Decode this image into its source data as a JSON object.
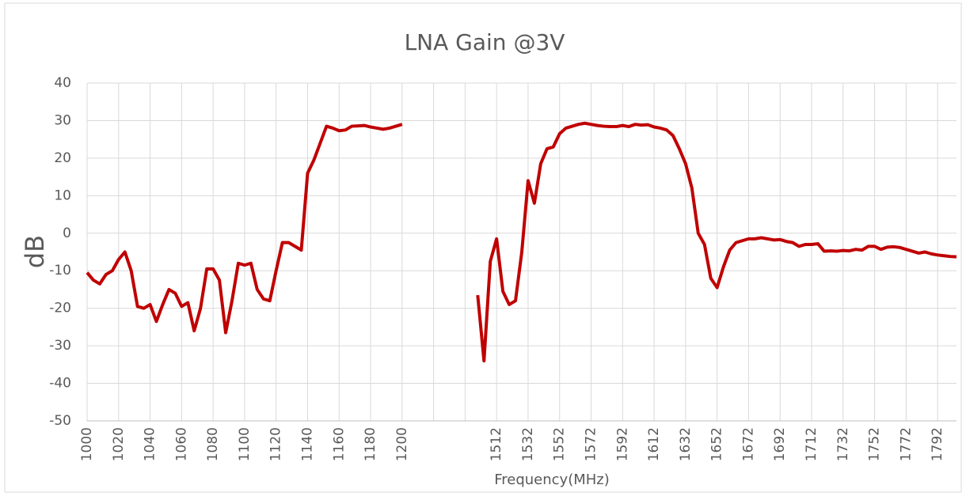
{
  "chart_data": {
    "type": "line",
    "title": "LNA Gain @3V",
    "x_label": "Frequency(MHz)",
    "y_label": "dB",
    "categories": [
      1000,
      null,
      null,
      null,
      null,
      1020,
      null,
      null,
      null,
      null,
      1040,
      null,
      null,
      null,
      null,
      1060,
      null,
      null,
      null,
      null,
      1080,
      null,
      null,
      null,
      null,
      1100,
      null,
      null,
      null,
      null,
      1120,
      null,
      null,
      null,
      null,
      1140,
      null,
      null,
      null,
      null,
      1160,
      null,
      null,
      null,
      null,
      1180,
      null,
      null,
      null,
      null,
      1200,
      null,
      null,
      null,
      null,
      null,
      null,
      null,
      null,
      null,
      null,
      null,
      null,
      null,
      null,
      1512,
      null,
      null,
      null,
      null,
      1532,
      null,
      null,
      null,
      null,
      1552,
      null,
      null,
      null,
      null,
      1572,
      null,
      null,
      null,
      null,
      1592,
      null,
      null,
      null,
      null,
      1612,
      null,
      null,
      null,
      null,
      1632,
      null,
      null,
      null,
      null,
      1652,
      null,
      null,
      null,
      null,
      1672,
      null,
      null,
      null,
      null,
      1692,
      null,
      null,
      null,
      null,
      1712,
      null,
      null,
      null,
      null,
      1732,
      null,
      null,
      null,
      null,
      1752,
      null,
      null,
      null,
      null,
      1772,
      null,
      null,
      null,
      null,
      1792,
      null,
      null,
      null
    ],
    "values": [
      -10.5,
      -12.5,
      -13.5,
      -11,
      -10,
      -7,
      -5,
      -10,
      -19.5,
      -20,
      -19,
      -23.5,
      -19,
      -15,
      -16,
      -19.5,
      -18.5,
      -26,
      -20,
      -9.5,
      -9.5,
      -12.5,
      -26.5,
      -18,
      -8,
      -8.5,
      -8,
      -15,
      -17.5,
      -18,
      -10,
      -2.5,
      -2.5,
      -3.5,
      -4.5,
      16,
      19.5,
      24,
      28.5,
      28,
      27.3,
      27.5,
      28.5,
      28.6,
      28.7,
      28.3,
      28,
      27.7,
      28,
      28.5,
      29,
      null,
      null,
      null,
      null,
      null,
      null,
      null,
      null,
      null,
      null,
      null,
      -16.5,
      -34,
      -7.5,
      -1.5,
      -15.5,
      -19,
      -18,
      -5,
      14,
      8,
      18.5,
      22.5,
      23,
      26.5,
      28,
      28.5,
      29,
      29.3,
      29,
      28.7,
      28.5,
      28.4,
      28.4,
      28.7,
      28.4,
      29,
      28.8,
      28.9,
      28.3,
      28,
      27.5,
      26,
      22.5,
      18.5,
      12,
      0,
      -3,
      -12,
      -14.5,
      -9,
      -4.5,
      -2.5,
      -2,
      -1.5,
      -1.5,
      -1.2,
      -1.5,
      -1.8,
      -1.7,
      -2.2,
      -2.5,
      -3.5,
      -3,
      -3,
      -2.8,
      -4.8,
      -4.7,
      -4.8,
      -4.6,
      -4.7,
      -4.3,
      -4.5,
      -3.5,
      -3.5,
      -4.3,
      -3.7,
      -3.6,
      -3.8,
      -4.3,
      -4.8,
      -5.3,
      -5,
      -5.5,
      -5.8,
      -6,
      -6.2,
      -6.3
    ],
    "color": "#c00000",
    "ylim": [
      -50,
      40
    ],
    "yticks": [
      -50,
      -40,
      -30,
      -20,
      -10,
      0,
      10,
      20,
      30,
      40
    ],
    "grid": true
  }
}
